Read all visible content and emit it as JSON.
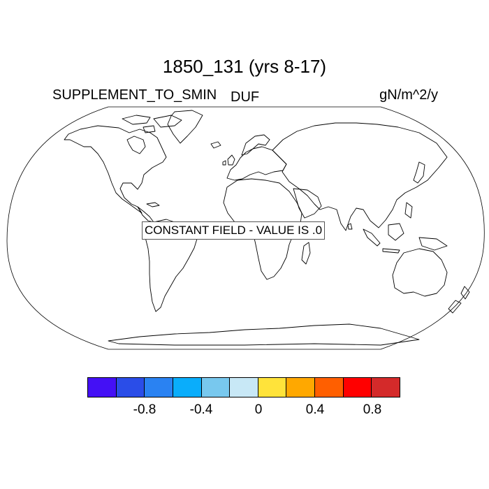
{
  "plot": {
    "title": "1850_131 (yrs 8-17)",
    "variable_left": "SUPPLEMENT_TO_SMIN",
    "variable_mid": "DUF",
    "units": "gN/m^2/y",
    "notice": "CONSTANT FIELD - VALUE IS .0"
  },
  "map": {
    "projection": "robinson",
    "coastline_color": "#000000",
    "background": "#ffffff"
  },
  "colorbar": {
    "colors": [
      "#4410f5",
      "#2a4de8",
      "#2a82f2",
      "#0aadfb",
      "#78c8ee",
      "#c8e8f6",
      "#ffe33a",
      "#ffa800",
      "#ff5f00",
      "#ff0000",
      "#d42a2a"
    ],
    "labels": [
      "-0.8",
      "-0.4",
      "0",
      "0.4",
      "0.8"
    ]
  }
}
